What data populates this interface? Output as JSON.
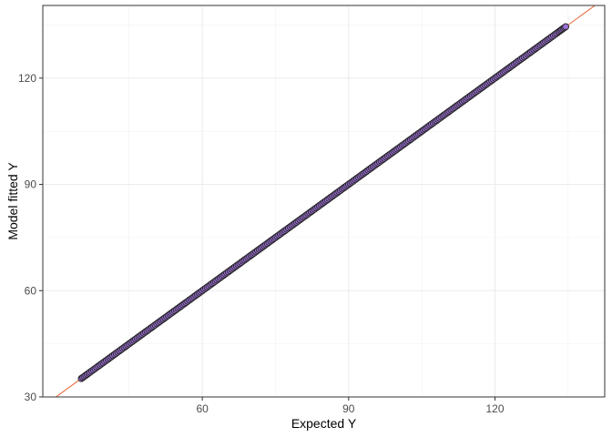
{
  "chart_data": {
    "type": "scatter",
    "title": "",
    "xlabel": "Expected Y",
    "ylabel": "Model fitted Y",
    "xlim": [
      27.3,
      142.5
    ],
    "ylim": [
      30,
      140.5
    ],
    "x_ticks": [
      60,
      90,
      120
    ],
    "y_ticks": [
      30,
      60,
      90,
      120
    ],
    "x_tick_labels": [
      "60",
      "90",
      "120"
    ],
    "y_tick_labels": [
      "30",
      "60",
      "90",
      "120"
    ],
    "grid": true,
    "reference_line": {
      "slope": 1,
      "intercept": 0,
      "color": "#e8602c"
    },
    "point_fill": "#9b6fd4",
    "point_edge": "#222222",
    "series": [
      {
        "x": [
          35.2,
          37.0,
          39.0,
          41.0,
          43.0,
          45.0,
          47.0,
          49.0,
          51.0,
          53.0,
          55.0,
          57.0,
          59.0,
          61.0,
          63.0,
          65.0,
          67.0,
          69.0,
          71.0,
          73.0,
          75.0,
          77.0,
          79.0,
          81.0,
          83.0,
          85.0,
          87.0,
          89.0,
          91.0,
          93.0,
          95.0,
          97.0,
          99.0,
          101.0,
          103.0,
          105.0,
          107.0,
          109.0,
          111.0,
          113.0,
          115.0,
          117.0,
          119.0,
          121.0,
          123.0,
          125.0,
          127.0,
          129.0,
          131.0,
          133.0,
          134.5
        ],
        "y": [
          35.2,
          37.0,
          39.0,
          41.0,
          43.0,
          45.0,
          47.0,
          49.0,
          51.0,
          53.0,
          55.0,
          57.0,
          59.0,
          61.0,
          63.0,
          65.0,
          67.0,
          69.0,
          71.0,
          73.0,
          75.0,
          77.0,
          79.0,
          81.0,
          83.0,
          85.0,
          87.0,
          89.0,
          91.0,
          93.0,
          95.0,
          97.0,
          99.0,
          101.0,
          103.0,
          105.0,
          107.0,
          109.0,
          111.0,
          113.0,
          115.0,
          117.0,
          119.0,
          121.0,
          123.0,
          125.0,
          127.0,
          129.0,
          131.0,
          133.0,
          134.5
        ]
      }
    ]
  }
}
